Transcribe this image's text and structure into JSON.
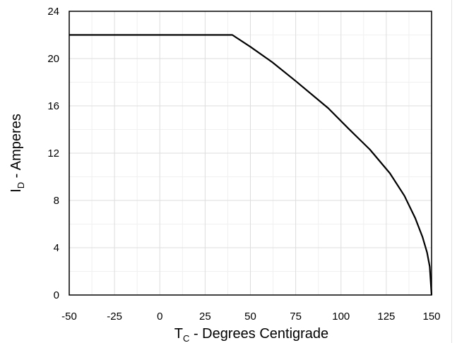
{
  "chart_data": {
    "type": "line",
    "title": "",
    "xlabel": {
      "main": "T",
      "sub": "C",
      "rest": " - Degrees Centigrade"
    },
    "ylabel": {
      "main": "I",
      "sub": "D",
      "rest": " - Amperes"
    },
    "xlim": [
      -50,
      150
    ],
    "ylim": [
      0,
      24
    ],
    "xticks": [
      -50,
      -25,
      0,
      25,
      50,
      75,
      100,
      125,
      150
    ],
    "xtick_labels": [
      "-50",
      "-25",
      "0",
      "25",
      "50",
      "75",
      "100",
      "125",
      "150"
    ],
    "yticks": [
      0,
      4,
      8,
      12,
      16,
      20,
      24
    ],
    "ytick_labels": [
      "0",
      "4",
      "8",
      "12",
      "16",
      "20",
      "24"
    ],
    "grid": true,
    "legend": "none",
    "series": [
      {
        "x": [
          -50,
          40,
          50,
          62,
          75,
          93,
          104,
          116,
          127,
          135,
          141,
          145,
          147.5,
          149,
          150
        ],
        "y": [
          22,
          22,
          21.0,
          19.7,
          18.1,
          15.8,
          14.1,
          12.3,
          10.3,
          8.4,
          6.5,
          4.9,
          3.6,
          2.4,
          0
        ],
        "color": "#000000"
      }
    ]
  }
}
